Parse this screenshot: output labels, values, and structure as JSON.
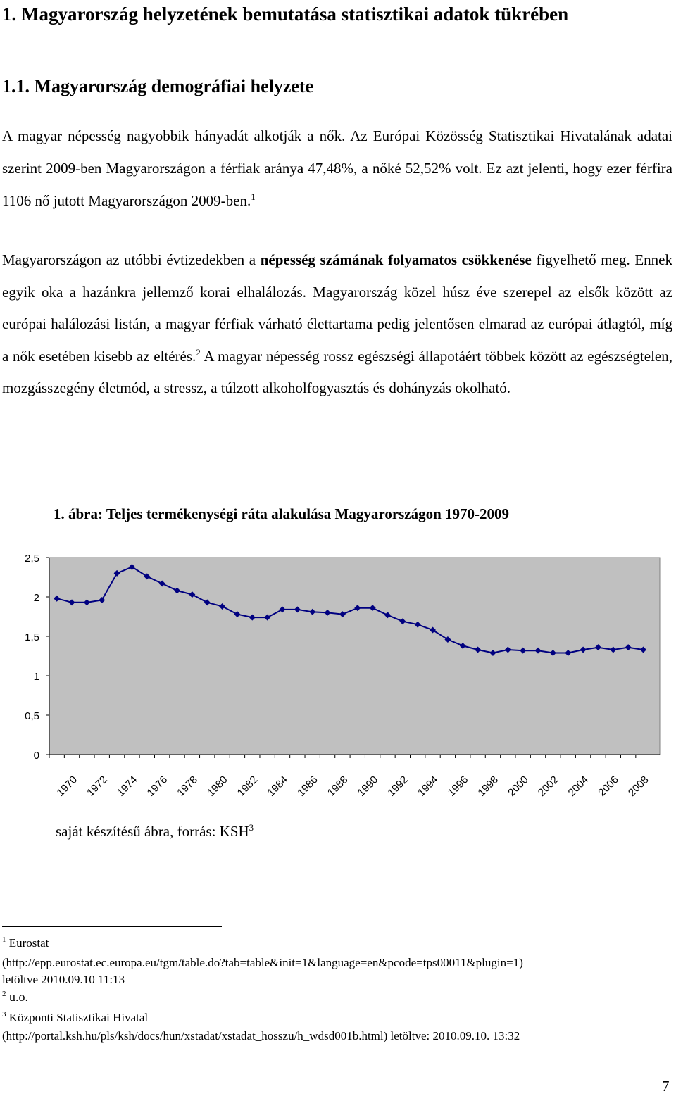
{
  "heading1": "1. Magyarország helyzetének bemutatása statisztikai adatok tükrében",
  "heading2": "1.1. Magyarország demográfiai helyzete",
  "paragraph1": {
    "text": "A magyar népesség nagyobbik hányadát alkotják a nők. Az Európai Közösség Statisztikai Hivatalának adatai szerint 2009-ben Magyarországon a férfiak aránya 47,48%, a nőké 52,52% volt. Ez azt jelenti, hogy ezer férfira 1106 nő jutott Magyarországon 2009-ben.",
    "footnote_ref": "1"
  },
  "paragraph2": {
    "part1": "Magyarországon az utóbbi évtizedekben a ",
    "bold": "népesség számának folyamatos csökkenése",
    "part2": " figyelhető meg. Ennek egyik oka a hazánkra jellemző korai elhalálozás. Magyarország közel húsz éve szerepel az elsők között az európai halálozási listán, a magyar férfiak várható élettartama pedig jelentősen elmarad az európai átlagtól, míg a nők esetében kisebb az eltérés.",
    "footnote_ref": "2",
    "part3": " A magyar népesség rossz egészségi állapotáért többek között az egészségtelen, mozgásszegény életmód, a stressz, a túlzott alkoholfogyasztás és dohányzás okolható."
  },
  "figure_caption": "1. ábra: Teljes termékenységi ráta alakulása Magyarországon 1970-2009",
  "source_text": "saját készítésű ábra, forrás: KSH",
  "source_ref": "3",
  "chart_data": {
    "type": "line",
    "title": "",
    "xlabel": "",
    "ylabel": "",
    "x": [
      1970,
      1971,
      1972,
      1973,
      1974,
      1975,
      1976,
      1977,
      1978,
      1979,
      1980,
      1981,
      1982,
      1983,
      1984,
      1985,
      1986,
      1987,
      1988,
      1989,
      1990,
      1991,
      1992,
      1993,
      1994,
      1995,
      1996,
      1997,
      1998,
      1999,
      2000,
      2001,
      2002,
      2003,
      2004,
      2005,
      2006,
      2007,
      2008,
      2009
    ],
    "x_tick_labels": [
      "1970",
      "1972",
      "1974",
      "1976",
      "1978",
      "1980",
      "1982",
      "1984",
      "1986",
      "1988",
      "1990",
      "1992",
      "1994",
      "1996",
      "1998",
      "2000",
      "2002",
      "2004",
      "2006",
      "2008"
    ],
    "y_tick_labels": [
      "0",
      "0,5",
      "1",
      "1,5",
      "2",
      "2,5"
    ],
    "ylim": [
      0,
      2.5
    ],
    "grid": false,
    "legend": "none",
    "series": [
      {
        "values": [
          1.98,
          1.93,
          1.93,
          1.96,
          2.3,
          2.38,
          2.26,
          2.17,
          2.08,
          2.03,
          1.93,
          1.88,
          1.78,
          1.74,
          1.74,
          1.84,
          1.84,
          1.81,
          1.8,
          1.78,
          1.86,
          1.86,
          1.77,
          1.69,
          1.65,
          1.58,
          1.46,
          1.38,
          1.33,
          1.29,
          1.33,
          1.32,
          1.32,
          1.29,
          1.29,
          1.33,
          1.36,
          1.33,
          1.36,
          1.33
        ]
      }
    ],
    "colors": {
      "line": "#000080",
      "plot_bg": "#c0c0c0"
    }
  },
  "footnotes": [
    {
      "num": "1",
      "line1": "Eurostat",
      "line2": "(http://epp.eurostat.ec.europa.eu/tgm/table.do?tab=table&init=1&language=en&pcode=tps00011&plugin=1)",
      "line3": "letöltve 2010.09.10 11:13"
    },
    {
      "num": "2",
      "line1": "u.o."
    },
    {
      "num": "3",
      "line1": "Központi Statisztikai Hivatal",
      "line2": "(http://portal.ksh.hu/pls/ksh/docs/hun/xstadat/xstadat_hosszu/h_wdsd001b.html) letöltve: 2010.09.10. 13:32"
    }
  ],
  "page_number": "7"
}
